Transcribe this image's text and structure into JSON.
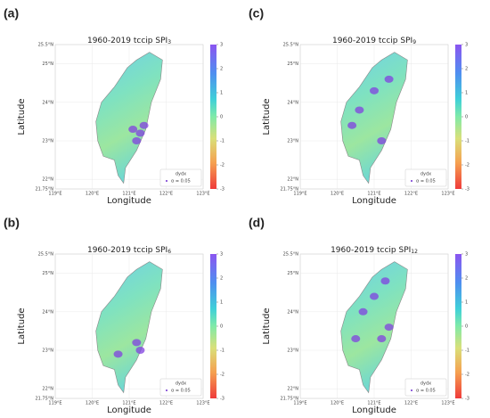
{
  "panels": [
    {
      "label": "(a)",
      "title": "1960-2019 tccip SPI",
      "subscript": "3"
    },
    {
      "label": "(c)",
      "title": "1960-2019 tccip SPI",
      "subscript": "9"
    },
    {
      "label": "(b)",
      "title": "1960-2019 tccip SPI",
      "subscript": "6"
    },
    {
      "label": "(d)",
      "title": "1960-2019 tccip SPI",
      "subscript": "12"
    }
  ],
  "xlabel": "Longitude",
  "ylabel": "Latitude",
  "xlim": [
    119,
    123
  ],
  "ylim": [
    21.75,
    25.5
  ],
  "xticks": [
    {
      "value": 119,
      "label": "119°E"
    },
    {
      "value": 120,
      "label": "120°E"
    },
    {
      "value": 121,
      "label": "121°E"
    },
    {
      "value": 122,
      "label": "122°E"
    },
    {
      "value": 123,
      "label": "123°E"
    }
  ],
  "yticks": [
    {
      "value": 21.75,
      "label": "21.75°N"
    },
    {
      "value": 22,
      "label": "22°N"
    },
    {
      "value": 23,
      "label": "23°N"
    },
    {
      "value": 24,
      "label": "24°N"
    },
    {
      "value": 25,
      "label": "25°N"
    },
    {
      "value": 25.5,
      "label": "25.5°N"
    }
  ],
  "colorbar": {
    "lim": [
      -3,
      3
    ],
    "ticks": [
      3,
      2,
      1,
      0,
      -1,
      -2,
      -3
    ]
  },
  "legend": {
    "title": "dydx",
    "label": "α = 0.05"
  }
}
